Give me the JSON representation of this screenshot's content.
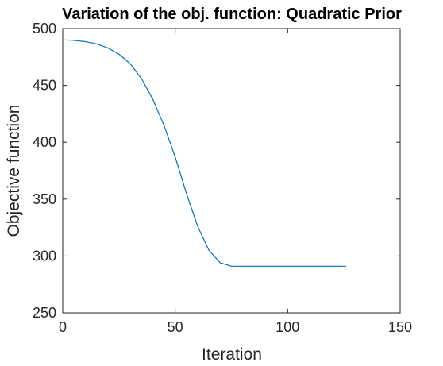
{
  "chart_data": {
    "type": "line",
    "title": "Variation of the obj. function: Quadratic Prior",
    "xlabel": "Iteration",
    "ylabel": "Objective function",
    "xlim": [
      0,
      150
    ],
    "ylim": [
      250,
      500
    ],
    "xticks": [
      0,
      50,
      100,
      150
    ],
    "yticks": [
      250,
      300,
      350,
      400,
      450,
      500
    ],
    "grid": false,
    "series": [
      {
        "color": "#0072BD",
        "x": [
          1,
          5,
          10,
          15,
          20,
          25,
          30,
          35,
          40,
          45,
          50,
          55,
          60,
          65,
          70,
          75,
          80,
          85,
          90,
          95,
          100,
          105,
          110,
          115,
          120,
          126
        ],
        "values": [
          490,
          489.6,
          488.5,
          486.5,
          483,
          477.5,
          469,
          456,
          438,
          415,
          387,
          355,
          326,
          305,
          294,
          291,
          291,
          291,
          291,
          291,
          291,
          291,
          291,
          291,
          291,
          291
        ]
      }
    ]
  }
}
